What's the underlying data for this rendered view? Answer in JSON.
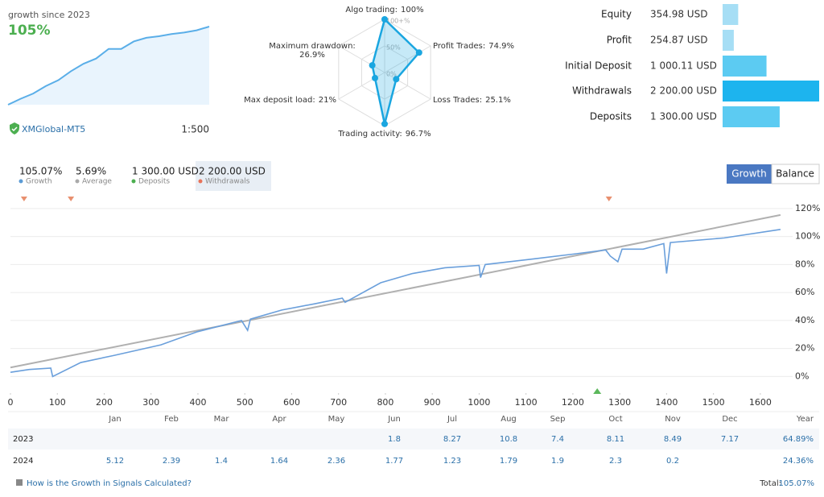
{
  "header": {
    "growth_label": "growth since 2023",
    "growth_value": "105%",
    "account": "XMGlobal-MT5",
    "leverage": "1:500"
  },
  "chart_data": [
    {
      "type": "area",
      "color": "#5aaee8",
      "x": [
        0,
        1,
        2,
        3,
        4,
        5,
        6,
        7,
        8,
        9,
        10,
        11,
        12,
        13,
        14,
        15,
        16
      ],
      "values": [
        0,
        8,
        15,
        25,
        33,
        45,
        55,
        62,
        75,
        75,
        85,
        90,
        92,
        95,
        97,
        100,
        105
      ],
      "xlim": [
        0,
        16
      ],
      "ylim": [
        0,
        105
      ]
    },
    {
      "type": "radar",
      "color": "#1aa6e0",
      "categories": [
        "Algo trading:",
        "Profit Trades:",
        "Loss Trades:",
        "Trading activity:",
        "Max deposit load:",
        "Maximum drawdown:"
      ],
      "values": [
        100,
        74.9,
        25.1,
        96.7,
        21,
        26.9
      ],
      "value_labels": [
        "100%",
        "74.9%",
        "25.1%",
        "96.7%",
        "21%",
        "26.9%"
      ],
      "rlim": [
        0,
        100
      ],
      "rticks": [
        {
          "value": 0,
          "label": "0%"
        },
        {
          "value": 50,
          "label": "50%"
        },
        {
          "value": 100,
          "label": "100+%"
        }
      ]
    },
    {
      "type": "hbar",
      "categories": [
        "Equity",
        "Profit",
        "Initial Deposit",
        "Withdrawals",
        "Deposits"
      ],
      "values": [
        354.98,
        254.87,
        1000.11,
        2200,
        1300
      ],
      "value_labels": [
        "354.98 USD",
        "254.87 USD",
        "1 000.11 USD",
        "2 200.00 USD",
        "1 300.00 USD"
      ],
      "colors": [
        "#a6def5",
        "#a6def5",
        "#5ccbf2",
        "#1db4ee",
        "#5ccbf2"
      ],
      "xlim": [
        0,
        2200
      ]
    },
    {
      "type": "line",
      "summary": [
        {
          "value": "105.07%",
          "label": "Growth",
          "color": "#5b9bd5"
        },
        {
          "value": "5.69%",
          "label": "Average",
          "color": "#aaaaaa"
        },
        {
          "value": "1 300.00 USD",
          "label": "Deposits",
          "color": "#4caf50"
        },
        {
          "value": "2 200.00 USD",
          "label": "Withdrawals",
          "color": "#e8735a"
        }
      ],
      "toggle": [
        "Growth",
        "Balance"
      ],
      "series": [
        {
          "name": "Growth",
          "color": "#6a9fdb",
          "x": [
            0,
            40,
            86,
            90,
            150,
            220,
            321,
            399,
            493,
            506,
            512,
            579,
            650,
            708,
            714,
            790,
            858,
            927,
            1000,
            1003,
            1013,
            1116,
            1202,
            1270,
            1280,
            1296,
            1305,
            1350,
            1394,
            1400,
            1408,
            1523,
            1643
          ],
          "values": [
            3,
            5,
            6,
            0,
            10,
            15,
            22.6,
            32,
            40,
            33,
            41,
            47.5,
            52,
            56,
            53,
            67,
            73.6,
            77.7,
            79.4,
            70.7,
            80,
            84,
            87.5,
            90.4,
            86,
            82,
            91,
            91,
            95,
            73.6,
            95.7,
            99,
            105.07
          ]
        },
        {
          "name": "Average",
          "color": "#b0b0b0",
          "x": [
            0,
            1643
          ],
          "values": [
            6.4,
            115.4
          ]
        }
      ],
      "withdrawal_markers": [
        29,
        129,
        1277
      ],
      "deposit_markers": [
        1252
      ],
      "xlim": [
        0,
        1650
      ],
      "ylim": [
        -13,
        128
      ],
      "xticks": [
        0,
        100,
        200,
        300,
        400,
        500,
        600,
        700,
        800,
        900,
        1000,
        1100,
        1200,
        1300,
        1400,
        1500,
        1600
      ],
      "yticks": [
        {
          "value": 0,
          "label": "0%"
        },
        {
          "value": 20,
          "label": "20%"
        },
        {
          "value": 40,
          "label": "40%"
        },
        {
          "value": 60,
          "label": "60%"
        },
        {
          "value": 80,
          "label": "80%"
        },
        {
          "value": 100,
          "label": "100%"
        },
        {
          "value": 120,
          "label": "120%"
        }
      ],
      "grid": true
    }
  ],
  "table": {
    "headers": [
      "Jan",
      "Feb",
      "Mar",
      "Apr",
      "May",
      "Jun",
      "Jul",
      "Aug",
      "Sep",
      "Oct",
      "Nov",
      "Dec",
      "Year"
    ],
    "rows": [
      [
        "2023",
        null,
        null,
        null,
        null,
        null,
        "1.8",
        "8.27",
        "10.8",
        "7.4",
        "8.11",
        "8.49",
        "7.17",
        "64.89%"
      ],
      [
        "2024",
        "5.12",
        "2.39",
        "1.4",
        "1.64",
        "2.36",
        "1.77",
        "1.23",
        "1.79",
        "1.9",
        "2.3",
        "0.2",
        null,
        "24.36%"
      ]
    ]
  },
  "footer": {
    "help_link": "How is the Growth in Signals Calculated?",
    "total_label": "Total:",
    "total_value": "105.07%"
  }
}
